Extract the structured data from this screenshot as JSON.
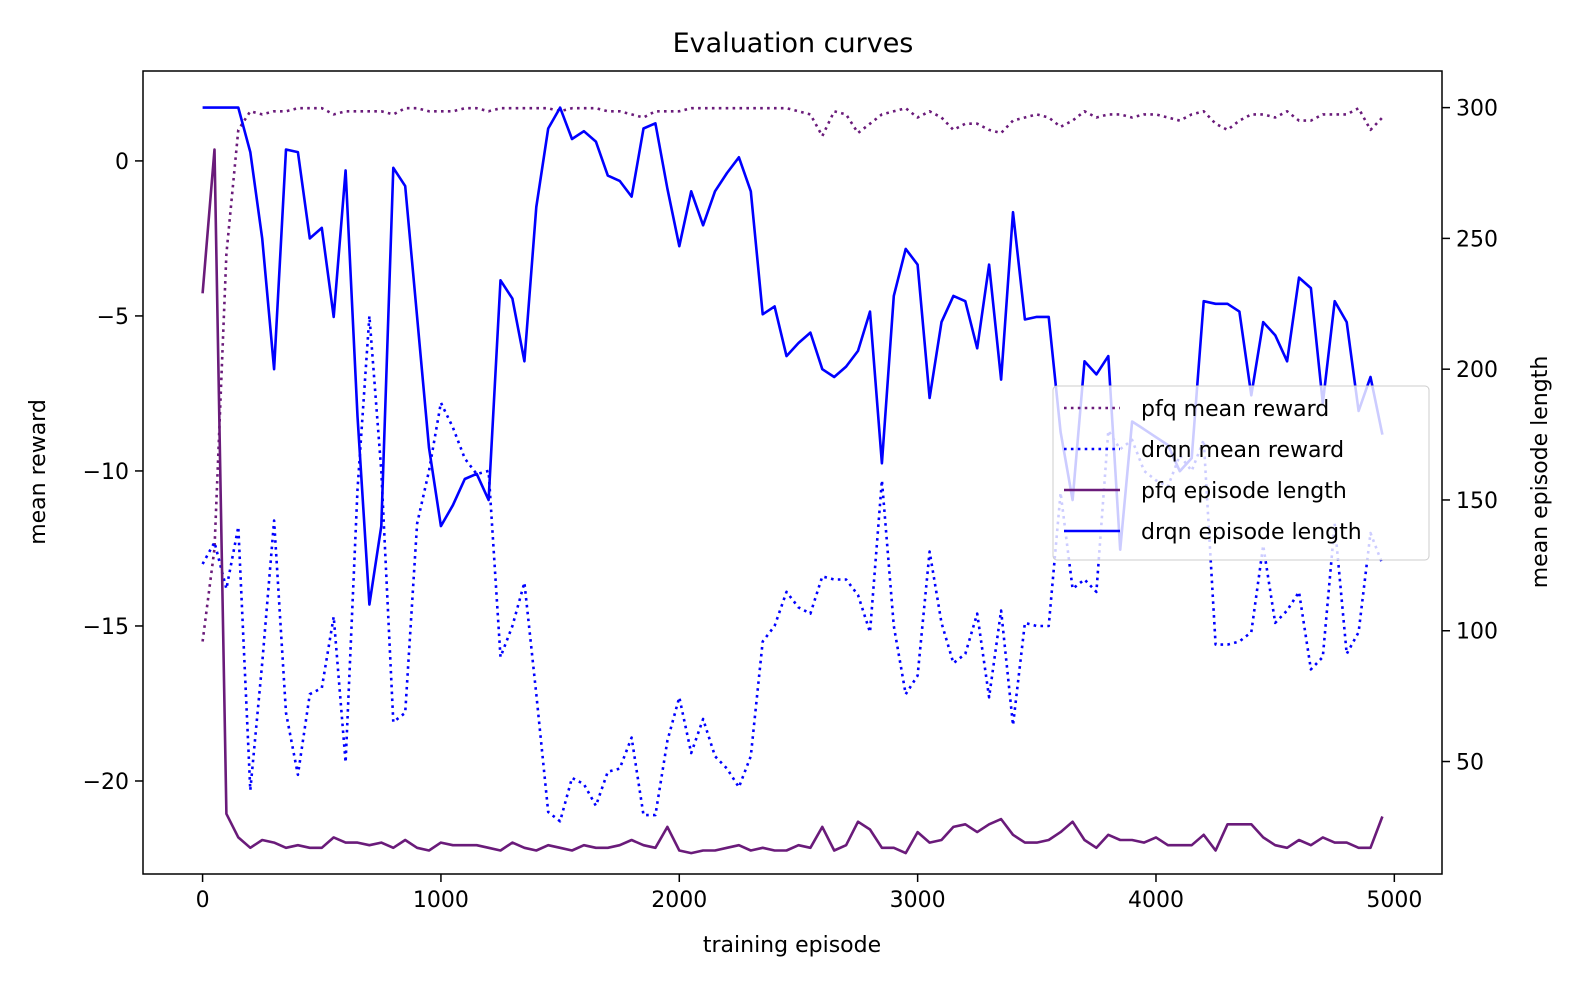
{
  "chart_data": {
    "type": "line",
    "title": "Evaluation curves",
    "xlabel": "training episode",
    "ylabel_left": "mean reward",
    "ylabel_right": "mean episode length",
    "xlim": [
      -250,
      5200
    ],
    "ylim_left": [
      -23.0,
      2.9
    ],
    "ylim_right": [
      7,
      314
    ],
    "x_ticks": [
      0,
      1000,
      2000,
      3000,
      4000,
      5000
    ],
    "x_tick_labels": [
      "0",
      "1000",
      "2000",
      "3000",
      "4000",
      "5000"
    ],
    "y_left_ticks": [
      0,
      -5,
      -10,
      -15,
      -20
    ],
    "y_left_tick_labels": [
      "0",
      "−5",
      "−10",
      "−15",
      "−20"
    ],
    "y_right_ticks": [
      300,
      250,
      200,
      150,
      100,
      50
    ],
    "y_right_tick_labels": [
      "300",
      "250",
      "200",
      "150",
      "100",
      "50"
    ],
    "legend_position": "center-right",
    "grid": false,
    "x": [
      0,
      50,
      100,
      150,
      200,
      250,
      300,
      350,
      400,
      450,
      500,
      550,
      600,
      650,
      700,
      750,
      800,
      850,
      900,
      950,
      1000,
      1050,
      1100,
      1150,
      1200,
      1250,
      1300,
      1350,
      1400,
      1450,
      1500,
      1550,
      1600,
      1650,
      1700,
      1750,
      1800,
      1850,
      1900,
      1950,
      2000,
      2050,
      2100,
      2150,
      2200,
      2250,
      2300,
      2350,
      2400,
      2450,
      2500,
      2550,
      2600,
      2650,
      2700,
      2750,
      2800,
      2850,
      2900,
      2950,
      3000,
      3050,
      3100,
      3150,
      3200,
      3250,
      3300,
      3350,
      3400,
      3450,
      3500,
      3550,
      3600,
      3650,
      3700,
      3750,
      3800,
      3850,
      3900,
      3950,
      4000,
      4050,
      4100,
      4150,
      4200,
      4250,
      4300,
      4350,
      4400,
      4450,
      4500,
      4550,
      4600,
      4650,
      4700,
      4750,
      4800,
      4850,
      4900,
      4950
    ],
    "series": [
      {
        "name": "pfq mean reward",
        "axis": "left",
        "color": "#6a1b7a",
        "style": "dotted",
        "values": [
          -15.5,
          -12.5,
          -3.0,
          1.0,
          1.6,
          1.5,
          1.6,
          1.6,
          1.7,
          1.7,
          1.7,
          1.5,
          1.6,
          1.6,
          1.6,
          1.6,
          1.5,
          1.7,
          1.7,
          1.6,
          1.6,
          1.6,
          1.7,
          1.7,
          1.6,
          1.7,
          1.7,
          1.7,
          1.7,
          1.7,
          1.6,
          1.7,
          1.7,
          1.7,
          1.6,
          1.6,
          1.5,
          1.4,
          1.6,
          1.6,
          1.6,
          1.7,
          1.7,
          1.7,
          1.7,
          1.7,
          1.7,
          1.7,
          1.7,
          1.7,
          1.6,
          1.5,
          0.8,
          1.6,
          1.5,
          0.9,
          1.2,
          1.5,
          1.6,
          1.7,
          1.4,
          1.6,
          1.4,
          1.0,
          1.2,
          1.2,
          1.0,
          0.9,
          1.3,
          1.4,
          1.5,
          1.4,
          1.1,
          1.3,
          1.6,
          1.4,
          1.5,
          1.5,
          1.4,
          1.5,
          1.5,
          1.4,
          1.3,
          1.5,
          1.6,
          1.2,
          1.0,
          1.3,
          1.5,
          1.5,
          1.4,
          1.6,
          1.3,
          1.3,
          1.5,
          1.5,
          1.5,
          1.7,
          1.0,
          1.4
        ]
      },
      {
        "name": "drqn mean reward",
        "axis": "left",
        "color": "#0000ff",
        "style": "dotted",
        "values": [
          -13.0,
          -12.3,
          -13.8,
          -11.8,
          -20.3,
          -16.2,
          -11.6,
          -17.8,
          -19.8,
          -17.2,
          -17.0,
          -14.7,
          -19.4,
          -10.6,
          -5.0,
          -10.0,
          -18.1,
          -17.8,
          -11.7,
          -10.0,
          -7.8,
          -8.6,
          -9.6,
          -10.1,
          -10.0,
          -16.0,
          -15.0,
          -13.6,
          -17.2,
          -21.0,
          -21.3,
          -19.9,
          -20.1,
          -20.8,
          -19.7,
          -19.6,
          -18.6,
          -21.1,
          -21.1,
          -18.7,
          -17.3,
          -19.1,
          -18.0,
          -19.2,
          -19.6,
          -20.2,
          -19.2,
          -15.5,
          -15.0,
          -13.9,
          -14.4,
          -14.6,
          -13.4,
          -13.5,
          -13.5,
          -14.0,
          -15.2,
          -10.3,
          -15.0,
          -17.2,
          -16.6,
          -12.6,
          -14.9,
          -16.2,
          -15.9,
          -14.6,
          -17.3,
          -14.5,
          -18.2,
          -14.9,
          -15.0,
          -15.0,
          -10.7,
          -13.8,
          -13.5,
          -13.9,
          -8.7,
          -9.3,
          -9.0,
          -10.0,
          -10.3,
          -10.5,
          -9.5,
          -10.0,
          -9.0,
          -15.6,
          -15.6,
          -15.5,
          -15.2,
          -12.4,
          -14.9,
          -14.5,
          -13.9,
          -16.4,
          -16.0,
          -11.7,
          -15.9,
          -15.2,
          -12.0,
          -13.0
        ]
      },
      {
        "name": "pfq episode length",
        "axis": "right",
        "color": "#6a1b7a",
        "style": "solid",
        "values": [
          229,
          284,
          30,
          21,
          17,
          20,
          19,
          17,
          18,
          17,
          17,
          21,
          19,
          19,
          18,
          19,
          17,
          20,
          17,
          16,
          19,
          18,
          18,
          18,
          17,
          16,
          19,
          17,
          16,
          18,
          17,
          16,
          18,
          17,
          17,
          18,
          20,
          18,
          17,
          25,
          16,
          15,
          16,
          16,
          17,
          18,
          16,
          17,
          16,
          16,
          18,
          17,
          25,
          16,
          18,
          27,
          24,
          17,
          17,
          15,
          23,
          19,
          20,
          25,
          26,
          23,
          26,
          28,
          22,
          19,
          19,
          20,
          23,
          27,
          20,
          17,
          22,
          20,
          20,
          19,
          21,
          18,
          18,
          18,
          22,
          16,
          26,
          26,
          26,
          21,
          18,
          17,
          20,
          18,
          21,
          19,
          19,
          17,
          17,
          29
        ]
      },
      {
        "name": "drqn episode length",
        "axis": "right",
        "color": "#0000ff",
        "style": "solid",
        "values": [
          300,
          300,
          300,
          300,
          283,
          250,
          200,
          284,
          283,
          250,
          254,
          220,
          276,
          182,
          110,
          140,
          277,
          270,
          220,
          170,
          140,
          148,
          158,
          160,
          150,
          234,
          227,
          203,
          262,
          292,
          300,
          288,
          291,
          287,
          274,
          272,
          266,
          292,
          294,
          269,
          247,
          268,
          255,
          268,
          275,
          281,
          268,
          221,
          224,
          205,
          210,
          214,
          200,
          197,
          201,
          207,
          222,
          164,
          228,
          246,
          240,
          189,
          218,
          228,
          226,
          208,
          240,
          196,
          260,
          219,
          220,
          220,
          176,
          150,
          203,
          198,
          205,
          131,
          180,
          177,
          174,
          171,
          161,
          166,
          226,
          225,
          225,
          222,
          190,
          218,
          213,
          203,
          235,
          231,
          187,
          226,
          218,
          184,
          197,
          175
        ]
      }
    ]
  }
}
